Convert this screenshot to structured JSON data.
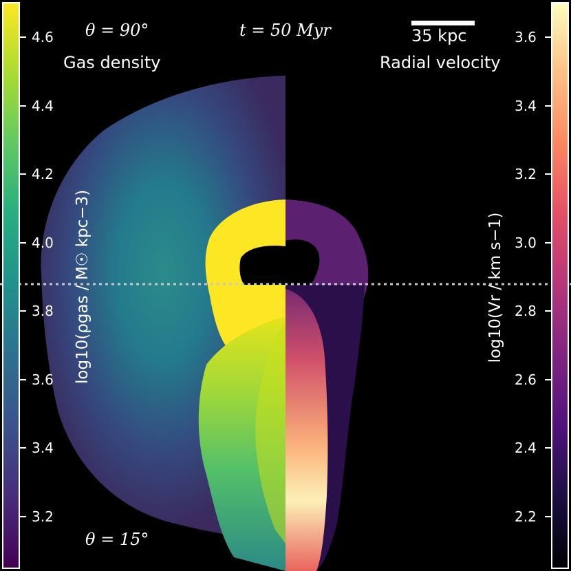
{
  "annotations": {
    "theta_top": "θ = 90°",
    "theta_bottom": "θ = 15°",
    "time": "t = 50 Myr",
    "scale_bar": "35 kpc",
    "left_panel": "Gas density",
    "right_panel": "Radial velocity"
  },
  "colorbars": {
    "left": {
      "label": "log10(ρgas / M☉ kpc−3)",
      "colormap": "viridis",
      "ticks": [
        "4.6",
        "4.4",
        "4.2",
        "4.0",
        "3.8",
        "3.6",
        "3.4",
        "3.2"
      ]
    },
    "right": {
      "label": "log10(Vr / km s−1)",
      "colormap": "magma",
      "ticks": [
        "3.6",
        "3.4",
        "3.2",
        "3.0",
        "2.8",
        "2.6",
        "2.4",
        "2.2"
      ]
    }
  },
  "colors": {
    "background": "#000000",
    "divider": "#c8c8c8"
  }
}
